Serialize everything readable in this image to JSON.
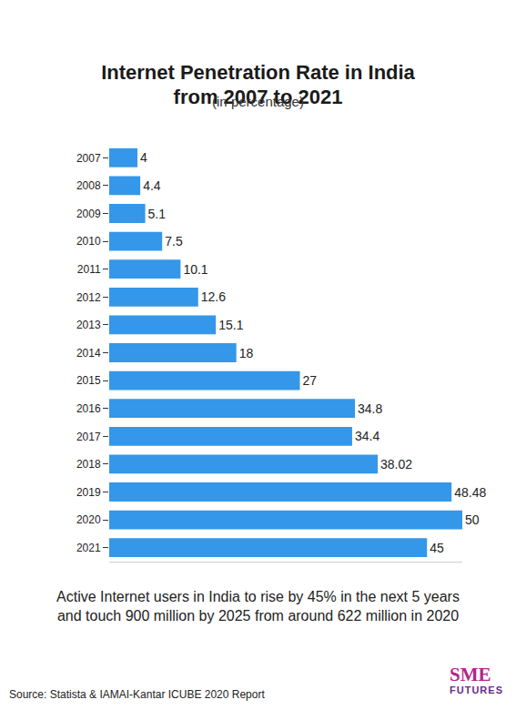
{
  "chart_data": {
    "type": "bar",
    "orientation": "horizontal",
    "title": "Internet Penetration Rate in India from 2007 to 2021",
    "subtitle": "(in percentage)",
    "categories": [
      "2007",
      "2008",
      "2009",
      "2010",
      "2011",
      "2012",
      "2013",
      "2014",
      "2015",
      "2016",
      "2017",
      "2018",
      "2019",
      "2020",
      "2021"
    ],
    "values": [
      4,
      4.4,
      5.1,
      7.5,
      10.1,
      12.6,
      15.1,
      18,
      27,
      34.8,
      34.4,
      38.02,
      48.48,
      50,
      45
    ],
    "color": "#3497e9",
    "xlim": [
      0,
      50
    ],
    "xticks": [],
    "tick_labels": "y",
    "data_labels": true,
    "grid": false,
    "annotations": [
      "Active Internet users in India to rise by 45% in the next 5 years and touch 900 million by 2025 from around 622 million in 2020"
    ],
    "source": "Source: Statista & IAMAI-Kantar ICUBE 2020 Report",
    "logo": [
      "SME",
      "FUTURES"
    ]
  }
}
